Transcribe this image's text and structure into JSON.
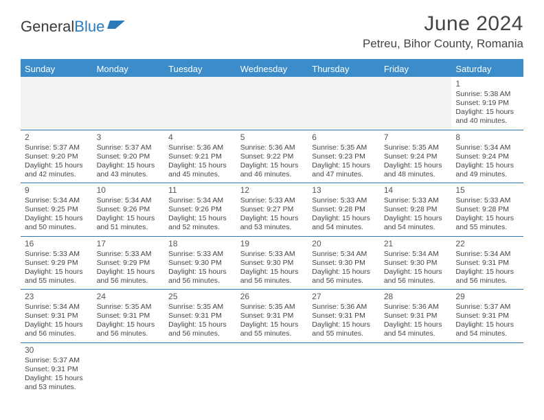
{
  "logo": {
    "part1": "General",
    "part2": "Blue"
  },
  "title": "June 2024",
  "location": "Petreu, Bihor County, Romania",
  "dayNames": [
    "Sunday",
    "Monday",
    "Tuesday",
    "Wednesday",
    "Thursday",
    "Friday",
    "Saturday"
  ],
  "colors": {
    "headerBar": "#3b8cc9",
    "rowDivider": "#2a7ab9",
    "emptyBg": "#f3f3f3",
    "text": "#444444"
  },
  "weeks": [
    [
      {
        "empty": true
      },
      {
        "empty": true
      },
      {
        "empty": true
      },
      {
        "empty": true
      },
      {
        "empty": true
      },
      {
        "empty": true
      },
      {
        "day": "1",
        "sunrise": "Sunrise: 5:38 AM",
        "sunset": "Sunset: 9:19 PM",
        "daylight": "Daylight: 15 hours and 40 minutes."
      }
    ],
    [
      {
        "day": "2",
        "sunrise": "Sunrise: 5:37 AM",
        "sunset": "Sunset: 9:20 PM",
        "daylight": "Daylight: 15 hours and 42 minutes."
      },
      {
        "day": "3",
        "sunrise": "Sunrise: 5:37 AM",
        "sunset": "Sunset: 9:20 PM",
        "daylight": "Daylight: 15 hours and 43 minutes."
      },
      {
        "day": "4",
        "sunrise": "Sunrise: 5:36 AM",
        "sunset": "Sunset: 9:21 PM",
        "daylight": "Daylight: 15 hours and 45 minutes."
      },
      {
        "day": "5",
        "sunrise": "Sunrise: 5:36 AM",
        "sunset": "Sunset: 9:22 PM",
        "daylight": "Daylight: 15 hours and 46 minutes."
      },
      {
        "day": "6",
        "sunrise": "Sunrise: 5:35 AM",
        "sunset": "Sunset: 9:23 PM",
        "daylight": "Daylight: 15 hours and 47 minutes."
      },
      {
        "day": "7",
        "sunrise": "Sunrise: 5:35 AM",
        "sunset": "Sunset: 9:24 PM",
        "daylight": "Daylight: 15 hours and 48 minutes."
      },
      {
        "day": "8",
        "sunrise": "Sunrise: 5:34 AM",
        "sunset": "Sunset: 9:24 PM",
        "daylight": "Daylight: 15 hours and 49 minutes."
      }
    ],
    [
      {
        "day": "9",
        "sunrise": "Sunrise: 5:34 AM",
        "sunset": "Sunset: 9:25 PM",
        "daylight": "Daylight: 15 hours and 50 minutes."
      },
      {
        "day": "10",
        "sunrise": "Sunrise: 5:34 AM",
        "sunset": "Sunset: 9:26 PM",
        "daylight": "Daylight: 15 hours and 51 minutes."
      },
      {
        "day": "11",
        "sunrise": "Sunrise: 5:34 AM",
        "sunset": "Sunset: 9:26 PM",
        "daylight": "Daylight: 15 hours and 52 minutes."
      },
      {
        "day": "12",
        "sunrise": "Sunrise: 5:33 AM",
        "sunset": "Sunset: 9:27 PM",
        "daylight": "Daylight: 15 hours and 53 minutes."
      },
      {
        "day": "13",
        "sunrise": "Sunrise: 5:33 AM",
        "sunset": "Sunset: 9:28 PM",
        "daylight": "Daylight: 15 hours and 54 minutes."
      },
      {
        "day": "14",
        "sunrise": "Sunrise: 5:33 AM",
        "sunset": "Sunset: 9:28 PM",
        "daylight": "Daylight: 15 hours and 54 minutes."
      },
      {
        "day": "15",
        "sunrise": "Sunrise: 5:33 AM",
        "sunset": "Sunset: 9:28 PM",
        "daylight": "Daylight: 15 hours and 55 minutes."
      }
    ],
    [
      {
        "day": "16",
        "sunrise": "Sunrise: 5:33 AM",
        "sunset": "Sunset: 9:29 PM",
        "daylight": "Daylight: 15 hours and 55 minutes."
      },
      {
        "day": "17",
        "sunrise": "Sunrise: 5:33 AM",
        "sunset": "Sunset: 9:29 PM",
        "daylight": "Daylight: 15 hours and 56 minutes."
      },
      {
        "day": "18",
        "sunrise": "Sunrise: 5:33 AM",
        "sunset": "Sunset: 9:30 PM",
        "daylight": "Daylight: 15 hours and 56 minutes."
      },
      {
        "day": "19",
        "sunrise": "Sunrise: 5:33 AM",
        "sunset": "Sunset: 9:30 PM",
        "daylight": "Daylight: 15 hours and 56 minutes."
      },
      {
        "day": "20",
        "sunrise": "Sunrise: 5:34 AM",
        "sunset": "Sunset: 9:30 PM",
        "daylight": "Daylight: 15 hours and 56 minutes."
      },
      {
        "day": "21",
        "sunrise": "Sunrise: 5:34 AM",
        "sunset": "Sunset: 9:30 PM",
        "daylight": "Daylight: 15 hours and 56 minutes."
      },
      {
        "day": "22",
        "sunrise": "Sunrise: 5:34 AM",
        "sunset": "Sunset: 9:31 PM",
        "daylight": "Daylight: 15 hours and 56 minutes."
      }
    ],
    [
      {
        "day": "23",
        "sunrise": "Sunrise: 5:34 AM",
        "sunset": "Sunset: 9:31 PM",
        "daylight": "Daylight: 15 hours and 56 minutes."
      },
      {
        "day": "24",
        "sunrise": "Sunrise: 5:35 AM",
        "sunset": "Sunset: 9:31 PM",
        "daylight": "Daylight: 15 hours and 56 minutes."
      },
      {
        "day": "25",
        "sunrise": "Sunrise: 5:35 AM",
        "sunset": "Sunset: 9:31 PM",
        "daylight": "Daylight: 15 hours and 56 minutes."
      },
      {
        "day": "26",
        "sunrise": "Sunrise: 5:35 AM",
        "sunset": "Sunset: 9:31 PM",
        "daylight": "Daylight: 15 hours and 55 minutes."
      },
      {
        "day": "27",
        "sunrise": "Sunrise: 5:36 AM",
        "sunset": "Sunset: 9:31 PM",
        "daylight": "Daylight: 15 hours and 55 minutes."
      },
      {
        "day": "28",
        "sunrise": "Sunrise: 5:36 AM",
        "sunset": "Sunset: 9:31 PM",
        "daylight": "Daylight: 15 hours and 54 minutes."
      },
      {
        "day": "29",
        "sunrise": "Sunrise: 5:37 AM",
        "sunset": "Sunset: 9:31 PM",
        "daylight": "Daylight: 15 hours and 54 minutes."
      }
    ],
    [
      {
        "day": "30",
        "sunrise": "Sunrise: 5:37 AM",
        "sunset": "Sunset: 9:31 PM",
        "daylight": "Daylight: 15 hours and 53 minutes."
      },
      {
        "empty": true
      },
      {
        "empty": true
      },
      {
        "empty": true
      },
      {
        "empty": true
      },
      {
        "empty": true
      },
      {
        "empty": true
      }
    ]
  ]
}
